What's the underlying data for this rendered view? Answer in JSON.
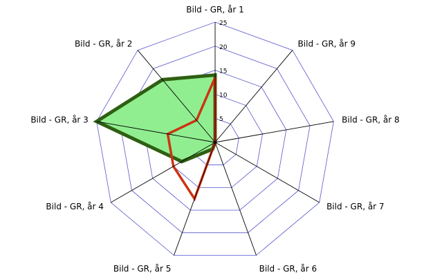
{
  "chart_data": {
    "type": "radar",
    "categories": [
      "Bild - GR, år 1",
      "Bild - GR, år 9",
      "Bild - GR, år 8",
      "Bild - GR, år 7",
      "Bild - GR, år 6",
      "Bild - GR, år 5",
      "Bild - GR, år 4",
      "Bild - GR, år 3",
      "Bild - GR, år 2"
    ],
    "ticks": [
      "5",
      "10",
      "15",
      "20",
      "25"
    ],
    "rlim": [
      0,
      25
    ],
    "grid": true,
    "legend": "none",
    "series": [
      {
        "values": [
          14,
          0,
          0,
          0,
          0,
          1.5,
          8,
          25,
          17
        ],
        "line_color": "#2f5f12",
        "fill_color": "#90ee90"
      },
      {
        "values": [
          13.5,
          0,
          0,
          0,
          0,
          12.5,
          10,
          10,
          6
        ],
        "line_color": "#cc3312",
        "fill_color": "none"
      }
    ],
    "colors": {
      "grid_ring": "#5555cc",
      "spoke": "#000000"
    }
  }
}
